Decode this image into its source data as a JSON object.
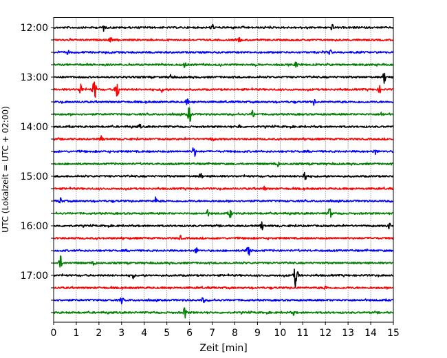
{
  "chart_data": {
    "type": "line",
    "title": "",
    "xlabel": "Zeit  [min]",
    "ylabel": "UTC (Lokalzeit = UTC + 02:00)",
    "xlim": [
      0,
      15
    ],
    "x_ticks": [
      "0",
      "1",
      "2",
      "3",
      "4",
      "5",
      "6",
      "7",
      "8",
      "9",
      "10",
      "11",
      "12",
      "13",
      "14",
      "15"
    ],
    "y_tick_labels": [
      "12:00",
      "13:00",
      "14:00",
      "15:00",
      "16:00",
      "17:00"
    ],
    "x_grid": true,
    "x_grid_style": "dotted",
    "trace_interval_min": 15,
    "trace_colors": [
      "#000000",
      "#ff0000",
      "#0000ff",
      "#008000"
    ],
    "traces": [
      {
        "start": "12:00",
        "color": "#000000",
        "events": [
          {
            "t": 2.2,
            "amp": 5
          },
          {
            "t": 7.0,
            "amp": 6
          },
          {
            "t": 12.3,
            "amp": 4
          }
        ]
      },
      {
        "start": "12:15",
        "color": "#ff0000",
        "events": [
          {
            "t": 2.5,
            "amp": 4
          },
          {
            "t": 8.2,
            "amp": 3
          }
        ]
      },
      {
        "start": "12:30",
        "color": "#0000ff",
        "events": [
          {
            "t": 0.6,
            "amp": 5
          },
          {
            "t": 12.2,
            "amp": 4
          }
        ]
      },
      {
        "start": "12:45",
        "color": "#008000",
        "events": [
          {
            "t": 5.8,
            "amp": 5
          },
          {
            "t": 10.7,
            "amp": 4
          }
        ]
      },
      {
        "start": "13:00",
        "color": "#000000",
        "events": [
          {
            "t": 14.6,
            "amp": 9
          },
          {
            "t": 5.2,
            "amp": 4
          }
        ]
      },
      {
        "start": "13:15",
        "color": "#ff0000",
        "events": [
          {
            "t": 1.2,
            "amp": 10
          },
          {
            "t": 1.8,
            "amp": 15
          },
          {
            "t": 2.8,
            "amp": 13
          },
          {
            "t": 4.8,
            "amp": 4
          },
          {
            "t": 14.4,
            "amp": 5
          }
        ]
      },
      {
        "start": "13:30",
        "color": "#0000ff",
        "events": [
          {
            "t": 5.9,
            "amp": 4
          },
          {
            "t": 11.5,
            "amp": 4
          }
        ]
      },
      {
        "start": "13:45",
        "color": "#008000",
        "events": [
          {
            "t": 6.0,
            "amp": 11
          },
          {
            "t": 8.8,
            "amp": 5
          },
          {
            "t": 14.5,
            "amp": 4
          }
        ]
      },
      {
        "start": "14:00",
        "color": "#000000",
        "events": [
          {
            "t": 3.8,
            "amp": 3
          },
          {
            "t": 8.2,
            "amp": 3
          }
        ]
      },
      {
        "start": "14:15",
        "color": "#ff0000",
        "events": [
          {
            "t": 2.1,
            "amp": 4
          },
          {
            "t": 7.0,
            "amp": 3
          }
        ]
      },
      {
        "start": "14:30",
        "color": "#0000ff",
        "events": [
          {
            "t": 6.2,
            "amp": 10
          },
          {
            "t": 14.2,
            "amp": 4
          }
        ]
      },
      {
        "start": "14:45",
        "color": "#008000",
        "events": [
          {
            "t": 9.9,
            "amp": 4
          }
        ]
      },
      {
        "start": "15:00",
        "color": "#000000",
        "events": [
          {
            "t": 11.1,
            "amp": 9
          },
          {
            "t": 6.5,
            "amp": 4
          }
        ]
      },
      {
        "start": "15:15",
        "color": "#ff0000",
        "events": [
          {
            "t": 9.3,
            "amp": 3
          }
        ]
      },
      {
        "start": "15:30",
        "color": "#0000ff",
        "events": [
          {
            "t": 0.3,
            "amp": 5
          },
          {
            "t": 4.5,
            "amp": 5
          }
        ]
      },
      {
        "start": "15:45",
        "color": "#008000",
        "events": [
          {
            "t": 7.8,
            "amp": 6
          },
          {
            "t": 12.2,
            "amp": 10
          },
          {
            "t": 6.8,
            "amp": 4
          }
        ]
      },
      {
        "start": "16:00",
        "color": "#000000",
        "events": [
          {
            "t": 9.2,
            "amp": 6
          },
          {
            "t": 14.8,
            "amp": 5
          }
        ]
      },
      {
        "start": "16:15",
        "color": "#ff0000",
        "events": [
          {
            "t": 5.6,
            "amp": 3
          }
        ]
      },
      {
        "start": "16:30",
        "color": "#0000ff",
        "events": [
          {
            "t": 8.6,
            "amp": 11
          },
          {
            "t": 6.3,
            "amp": 4
          }
        ]
      },
      {
        "start": "16:45",
        "color": "#008000",
        "events": [
          {
            "t": 0.3,
            "amp": 10
          },
          {
            "t": 1.8,
            "amp": 4
          }
        ]
      },
      {
        "start": "17:00",
        "color": "#000000",
        "events": [
          {
            "t": 10.7,
            "amp": 18
          },
          {
            "t": 3.5,
            "amp": 4
          }
        ]
      },
      {
        "start": "17:15",
        "color": "#ff0000",
        "events": [
          {
            "t": 12.0,
            "amp": 3
          }
        ]
      },
      {
        "start": "17:30",
        "color": "#0000ff",
        "events": [
          {
            "t": 3.0,
            "amp": 5
          },
          {
            "t": 6.6,
            "amp": 4
          }
        ]
      },
      {
        "start": "17:45",
        "color": "#008000",
        "events": [
          {
            "t": 5.8,
            "amp": 9
          },
          {
            "t": 10.6,
            "amp": 3
          }
        ]
      }
    ]
  }
}
